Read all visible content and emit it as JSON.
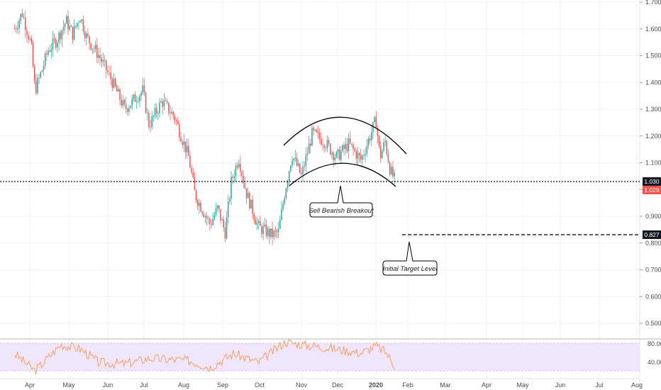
{
  "chart_data": {
    "type": "candlestick",
    "price_axis": {
      "min": 0.45,
      "max": 1.7,
      "ticks": [
        "1.700",
        "1.600",
        "1.500",
        "1.400",
        "1.300",
        "1.200",
        "1.100",
        "1.000",
        "0.900",
        "0.800",
        "0.700",
        "0.600",
        "0.500"
      ]
    },
    "x_axis": {
      "ticks": [
        "Apr",
        "May",
        "Jun",
        "Jul",
        "Aug",
        "Sep",
        "Oct",
        "Nov",
        "Dec",
        "2020",
        "Feb",
        "Mar",
        "Apr",
        "May",
        "Jun",
        "Jul",
        "Aug"
      ]
    },
    "candle_path": [
      {
        "date": "Mar 20",
        "price": 1.6
      },
      {
        "date": "Mar 26",
        "price": 1.66
      },
      {
        "date": "Apr 2",
        "price": 1.54
      },
      {
        "date": "Apr 5",
        "price": 1.37
      },
      {
        "date": "Apr 10",
        "price": 1.44
      },
      {
        "date": "Apr 15",
        "price": 1.52
      },
      {
        "date": "Apr 22",
        "price": 1.56
      },
      {
        "date": "Apr 29",
        "price": 1.63
      },
      {
        "date": "May 4",
        "price": 1.58
      },
      {
        "date": "May 10",
        "price": 1.65
      },
      {
        "date": "May 15",
        "price": 1.57
      },
      {
        "date": "May 25",
        "price": 1.5
      },
      {
        "date": "Jun 5",
        "price": 1.4
      },
      {
        "date": "Jun 15",
        "price": 1.3
      },
      {
        "date": "Jun 30",
        "price": 1.37
      },
      {
        "date": "Jul 5",
        "price": 1.24
      },
      {
        "date": "Jul 15",
        "price": 1.33
      },
      {
        "date": "Jul 25",
        "price": 1.27
      },
      {
        "date": "Aug 5",
        "price": 1.12
      },
      {
        "date": "Aug 10",
        "price": 0.98
      },
      {
        "date": "Aug 22",
        "price": 0.87
      },
      {
        "date": "Aug 28",
        "price": 0.93
      },
      {
        "date": "Sep 3",
        "price": 0.84
      },
      {
        "date": "Sep 8",
        "price": 1.03
      },
      {
        "date": "Sep 14",
        "price": 1.12
      },
      {
        "date": "Sep 20",
        "price": 0.99
      },
      {
        "date": "Sep 30",
        "price": 0.86
      },
      {
        "date": "Oct 10",
        "price": 0.83
      },
      {
        "date": "Oct 15",
        "price": 0.84
      },
      {
        "date": "Oct 20",
        "price": 1.0
      },
      {
        "date": "Oct 25",
        "price": 1.13
      },
      {
        "date": "Nov 1",
        "price": 1.05
      },
      {
        "date": "Nov 10",
        "price": 1.21
      },
      {
        "date": "Nov 20",
        "price": 1.18
      },
      {
        "date": "Nov 30",
        "price": 1.12
      },
      {
        "date": "Dec 10",
        "price": 1.17
      },
      {
        "date": "Dec 20",
        "price": 1.11
      },
      {
        "date": "Jan 1",
        "price": 1.26
      },
      {
        "date": "Jan 5",
        "price": 1.12
      },
      {
        "date": "Jan 10",
        "price": 1.18
      },
      {
        "date": "Jan 15",
        "price": 1.07
      },
      {
        "date": "Jan 20",
        "price": 1.03
      }
    ],
    "last_price": "1.029",
    "horizontal_levels": [
      {
        "value": 1.03,
        "label": "1.030",
        "style": "dotted"
      },
      {
        "value": 0.827,
        "label": "0.827",
        "style": "dashed"
      }
    ],
    "annotations": [
      {
        "text": "Sell Bearish Breakout"
      },
      {
        "text": "Initial Target Level"
      }
    ],
    "pattern": {
      "type": "rounding-top channel"
    },
    "rsi": {
      "ticks": [
        "80.00",
        "40.00"
      ],
      "band": [
        30,
        70
      ],
      "path": [
        {
          "date": "Mar 20",
          "value": 55
        },
        {
          "date": "Apr 5",
          "value": 30
        },
        {
          "date": "Apr 25",
          "value": 68
        },
        {
          "date": "May 10",
          "value": 62
        },
        {
          "date": "May 25",
          "value": 42
        },
        {
          "date": "Jun 15",
          "value": 40
        },
        {
          "date": "Jul 5",
          "value": 48
        },
        {
          "date": "Aug 5",
          "value": 45
        },
        {
          "date": "Aug 22",
          "value": 35
        },
        {
          "date": "Sep 10",
          "value": 55
        },
        {
          "date": "Sep 30",
          "value": 42
        },
        {
          "date": "Oct 20",
          "value": 72
        },
        {
          "date": "Nov 1",
          "value": 68
        },
        {
          "date": "Nov 20",
          "value": 64
        },
        {
          "date": "Dec 20",
          "value": 56
        },
        {
          "date": "Jan 1",
          "value": 66
        },
        {
          "date": "Jan 10",
          "value": 58
        },
        {
          "date": "Jan 20",
          "value": 36
        }
      ]
    }
  },
  "colors": {
    "up": "#26a69a",
    "down": "#ef5350",
    "grid": "#f0f3fa",
    "axis_text": "#4a4a4a",
    "rsi_line": "#f5a05a",
    "rsi_band": "#f0e6fb",
    "label_dark": "#131722",
    "label_red": "#ef5350"
  }
}
